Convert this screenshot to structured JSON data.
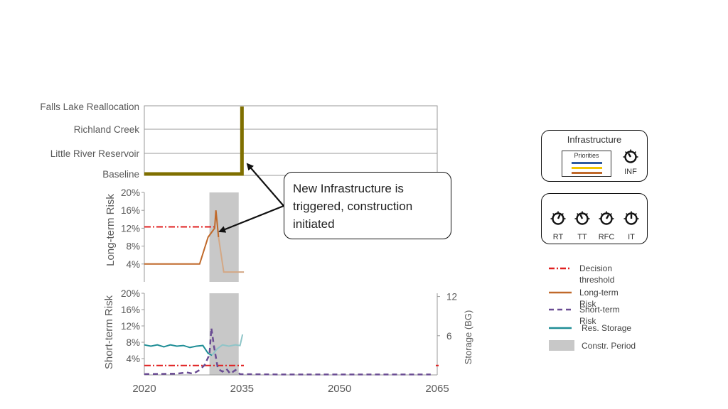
{
  "chart_data": [
    {
      "type": "step",
      "panel": "infrastructure",
      "categories": [
        "Baseline",
        "Little River Reservoir",
        "Richland Creek",
        "Falls Lake Reallocation"
      ],
      "series": [
        {
          "color": "#7f6f00",
          "points": [
            [
              2020,
              0
            ],
            [
              2035,
              0
            ],
            [
              2035,
              3
            ]
          ]
        }
      ],
      "xlim": [
        2020,
        2065
      ]
    },
    {
      "type": "line",
      "panel": "long-term",
      "ylabel": "Long-term Risk",
      "yticks": [
        "4%",
        "8%",
        "12%",
        "16%",
        "20%"
      ],
      "ylim": [
        0,
        20
      ],
      "xlim": [
        2020,
        2065
      ],
      "decision_threshold": 12.3,
      "construction_period": [
        2030,
        2034.5
      ],
      "series": [
        {
          "name": "Long-term Risk",
          "color": "#c0692a",
          "points": [
            [
              2020,
              4
            ],
            [
              2028.5,
              4
            ],
            [
              2029.8,
              10
            ],
            [
              2030.8,
              12
            ],
            [
              2031.0,
              16
            ],
            [
              2031.4,
              10
            ],
            [
              2032.2,
              2.2
            ],
            [
              2035.3,
              2.2
            ]
          ]
        }
      ]
    },
    {
      "type": "line",
      "panel": "short-term",
      "ylabel": "Short-term Risk",
      "y2label": "Storage (BG)",
      "yticks": [
        "4%",
        "8%",
        "12%",
        "16%",
        "20%"
      ],
      "y2ticks": [
        "6",
        "12"
      ],
      "ylim": [
        0,
        20
      ],
      "y2lim": [
        0,
        12.5
      ],
      "xticks": [
        "2020",
        "2035",
        "2050",
        "2065"
      ],
      "xlim": [
        2020,
        2065
      ],
      "decision_threshold": 2.3,
      "construction_period": [
        2030,
        2034.5
      ],
      "series": [
        {
          "name": "Short-term Risk",
          "color": "#6a4c93",
          "points": [
            [
              2020,
              0.2
            ],
            [
              2025,
              0.3
            ],
            [
              2026.5,
              0.6
            ],
            [
              2027.5,
              0.3
            ],
            [
              2028.5,
              1.2
            ],
            [
              2029.3,
              2.5
            ],
            [
              2030.0,
              5
            ],
            [
              2030.3,
              11.5
            ],
            [
              2030.7,
              7
            ],
            [
              2031.3,
              1.5
            ],
            [
              2032.0,
              0.8
            ],
            [
              2032.6,
              1.5
            ],
            [
              2033.2,
              0.3
            ],
            [
              2034.0,
              1.2
            ],
            [
              2034.7,
              0.2
            ],
            [
              2041,
              0.1
            ],
            [
              2052,
              0.1
            ],
            [
              2064,
              0.1
            ]
          ]
        },
        {
          "name": "Res. Storage",
          "color": "#1f8e96",
          "axis": "y2",
          "points": [
            [
              2020,
              4.6
            ],
            [
              2021,
              4.4
            ],
            [
              2022,
              4.6
            ],
            [
              2023,
              4.3
            ],
            [
              2024,
              4.6
            ],
            [
              2025,
              4.4
            ],
            [
              2026,
              4.5
            ],
            [
              2027,
              4.2
            ],
            [
              2028,
              4.4
            ],
            [
              2029,
              4.5
            ],
            [
              2029.8,
              3.3
            ],
            [
              2030.4,
              3.0
            ],
            [
              2031.2,
              4.0
            ],
            [
              2032.0,
              4.6
            ],
            [
              2033.0,
              4.4
            ],
            [
              2034.0,
              4.6
            ],
            [
              2034.7,
              4.5
            ],
            [
              2035.1,
              6.2
            ]
          ]
        }
      ]
    }
  ],
  "callout": {
    "text": "New Infrastructure is triggered, construction initiated"
  },
  "infrastructure_panel": {
    "title": "Infrastructure",
    "priorities_label": "Priorities",
    "priority_colors": [
      "#2e5aa0",
      "#f2c500",
      "#c0692a"
    ],
    "knob_label": "INF"
  },
  "knobs_panel": {
    "knobs": [
      "RT",
      "TT",
      "RFC",
      "IT"
    ]
  },
  "legend": [
    {
      "label": "Decision threshold",
      "style": "dash-dot",
      "color": "#e02020"
    },
    {
      "label": "Long-term Risk",
      "style": "solid",
      "color": "#c0692a"
    },
    {
      "label": "Short-term Risk",
      "style": "dashed",
      "color": "#6a4c93"
    },
    {
      "label": "Res. Storage",
      "style": "solid",
      "color": "#1f8e96"
    },
    {
      "label": "Constr. Period",
      "style": "band",
      "color": "#c8c8c8"
    }
  ]
}
